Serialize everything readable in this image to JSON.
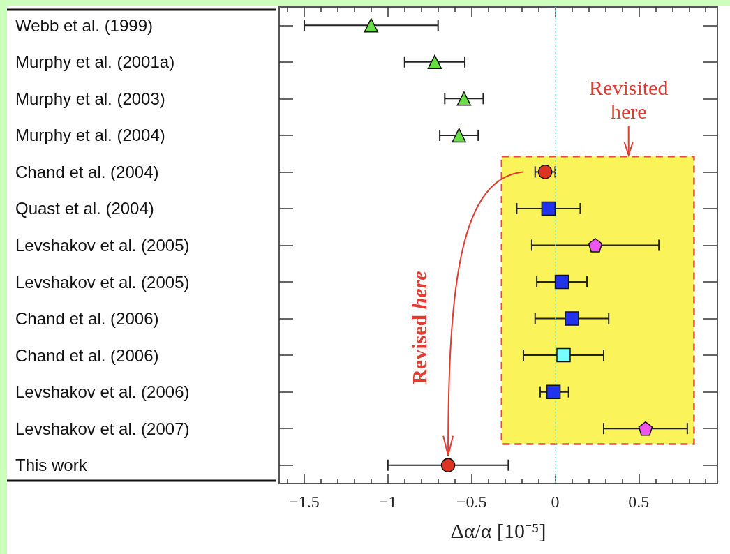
{
  "chart_data": {
    "type": "scatter",
    "orientation": "horizontal",
    "xlabel": "Δα/α [10⁻⁵]",
    "categories": [
      "Webb et al. (1999)",
      "Murphy et al. (2001a)",
      "Murphy et al. (2003)",
      "Murphy et al. (2004)",
      "Chand et al. (2004)",
      "Quast et al. (2004)",
      "Levshakov et al. (2005)",
      "Levshakov et al. (2005)",
      "Chand et al. (2006)",
      "Chand et al. (2006)",
      "Levshakov et al. (2006)",
      "Levshakov et al. (2007)",
      "This work"
    ],
    "series": [
      {
        "color": "#66dd44",
        "marker": "triangle",
        "values": [
          -1.1,
          -0.72,
          -0.545,
          -0.575,
          null,
          null,
          null,
          null,
          null,
          null,
          null,
          null,
          null
        ],
        "errors": [
          [
            -1.5,
            -0.7
          ],
          [
            -0.9,
            -0.54
          ],
          [
            -0.66,
            -0.43
          ],
          [
            -0.69,
            -0.46
          ],
          null,
          null,
          null,
          null,
          null,
          null,
          null,
          null,
          null
        ]
      },
      {
        "color": "#dd3322",
        "marker": "circle",
        "values": [
          null,
          null,
          null,
          null,
          -0.06,
          null,
          null,
          null,
          null,
          null,
          null,
          null,
          -0.64
        ],
        "errors": [
          null,
          null,
          null,
          null,
          [
            -0.12,
            0.0
          ],
          null,
          null,
          null,
          null,
          null,
          null,
          null,
          [
            -1.0,
            -0.28
          ]
        ]
      },
      {
        "color": "#2233ee",
        "marker": "square",
        "values": [
          null,
          null,
          null,
          null,
          null,
          -0.04,
          null,
          0.04,
          0.1,
          null,
          -0.01,
          null,
          null
        ],
        "errors": [
          null,
          null,
          null,
          null,
          null,
          [
            -0.23,
            0.15
          ],
          null,
          [
            -0.11,
            0.19
          ],
          [
            -0.12,
            0.32
          ],
          null,
          [
            -0.09,
            0.08
          ],
          null,
          null
        ]
      },
      {
        "color": "#ee55ee",
        "values": [
          null,
          null,
          null,
          null,
          null,
          null,
          0.24,
          null,
          null,
          null,
          null,
          null,
          null
        ],
        "errors": [
          null,
          null,
          null,
          null,
          null,
          null,
          [
            -0.14,
            0.62
          ],
          null,
          null,
          null,
          null,
          null,
          null
        ]
      },
      {
        "color": "#77ffff",
        "marker": "square",
        "values": [
          null,
          null,
          null,
          null,
          null,
          null,
          null,
          null,
          null,
          0.05,
          null,
          null,
          null
        ],
        "errors": [
          null,
          null,
          null,
          null,
          null,
          null,
          null,
          null,
          null,
          [
            -0.19,
            0.29
          ],
          null,
          null,
          null
        ]
      },
      {
        "color": "#ee55ee",
        "values": [
          null,
          null,
          null,
          null,
          null,
          null,
          null,
          null,
          null,
          null,
          null,
          0.54,
          null
        ],
        "errors": [
          null,
          null,
          null,
          null,
          null,
          null,
          null,
          null,
          null,
          null,
          null,
          [
            0.29,
            0.79
          ],
          null
        ]
      }
    ],
    "xlim": [
      -1.65,
      0.97
    ],
    "xticks": [
      {
        "value": -1.6,
        "label": null
      },
      -1.5,
      {
        "value": -1.4,
        "label": null
      },
      {
        "value": -1.3,
        "label": null
      },
      {
        "value": -1.2,
        "label": null
      },
      {
        "value": -1.1,
        "label": null
      },
      -1,
      {
        "value": -0.9,
        "label": null
      },
      {
        "value": -0.8,
        "label": null
      },
      {
        "value": -0.7,
        "label": null
      },
      {
        "value": -0.6,
        "label": null
      },
      -0.5,
      {
        "value": -0.4,
        "label": null
      },
      {
        "value": -0.3,
        "label": null
      },
      {
        "value": -0.2,
        "label": null
      },
      {
        "value": -0.1,
        "label": null
      },
      0,
      {
        "value": 0.1,
        "label": null
      },
      {
        "value": 0.2,
        "label": null
      },
      {
        "value": 0.3,
        "label": null
      },
      {
        "value": 0.4,
        "label": null
      },
      0.5,
      {
        "value": 0.6,
        "label": null
      },
      {
        "value": 0.7,
        "label": null
      },
      {
        "value": 0.8,
        "label": null
      },
      {
        "value": 0.9,
        "label": null
      }
    ],
    "ref_lines": [
      {
        "axis": "x",
        "value": 0,
        "color": "#66eeee",
        "line_style": "dotted"
      }
    ],
    "bands": [
      {
        "axis": "x",
        "from": -0.32,
        "to": 0.83,
        "color": "#fbf35a",
        "label": "Revisited here"
      }
    ],
    "annotations": [
      "Revised here"
    ]
  }
}
